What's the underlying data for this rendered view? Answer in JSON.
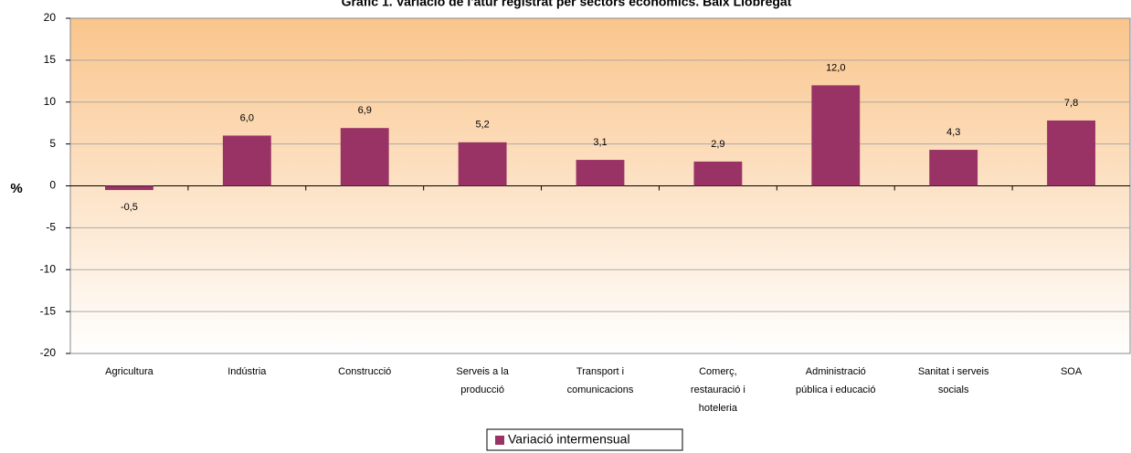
{
  "chart_data": {
    "type": "bar",
    "title": "Gràfic 1. Variació de l'atur registrat per sectors econòmics. Baix Llobregat",
    "y_label": "%",
    "categories": [
      "Agricultura",
      "Indústria",
      "Construcció",
      "Serveis a la\nproducció",
      "Transport i\ncomunicacions",
      "Comerç,\nrestauració i\nhoteleria",
      "Administració\npública i educació",
      "Sanitat i serveis\nsocials",
      "SOA"
    ],
    "series": [
      {
        "name": "Variació intermensual",
        "color": "#993366",
        "values": [
          -0.5,
          6.0,
          6.9,
          5.2,
          3.1,
          2.9,
          12.0,
          4.3,
          7.8
        ],
        "value_labels": [
          "-0,5",
          "6,0",
          "6,9",
          "5,2",
          "3,1",
          "2,9",
          "12,0",
          "4,3",
          "7,8"
        ]
      }
    ],
    "ylim": [
      -20,
      20
    ],
    "yticks": [
      -20,
      -15,
      -10,
      -5,
      0,
      5,
      10,
      15,
      20
    ],
    "grid": true
  }
}
